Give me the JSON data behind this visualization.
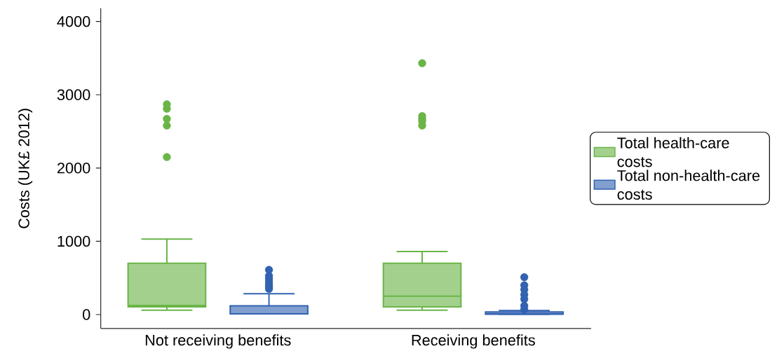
{
  "chart_data": {
    "type": "box",
    "ylabel": "Costs (UK£ 2012)",
    "categories": [
      "Not receiving benefits",
      "Receiving benefits"
    ],
    "series": [
      {
        "name": "Total health-care costs",
        "color": "#6ab547",
        "boxes": [
          {
            "low": 60,
            "q1": 105,
            "median": 125,
            "q3": 700,
            "high": 1030,
            "outliers": [
              2150,
              2580,
              2670,
              2810,
              2870
            ]
          },
          {
            "low": 60,
            "q1": 105,
            "median": 250,
            "q3": 700,
            "high": 860,
            "outliers": [
              2580,
              2640,
              2670,
              2710,
              3430
            ]
          }
        ]
      },
      {
        "name": "Total non-health-care costs",
        "color": "#3262b0",
        "boxes": [
          {
            "low": 10,
            "q1": 10,
            "median": 10,
            "q3": 120,
            "high": 285,
            "outliers": [
              350,
              380,
              410,
              450,
              490,
              530,
              610
            ]
          },
          {
            "low": 5,
            "q1": 5,
            "median": 10,
            "q3": 35,
            "high": 55,
            "outliers": [
              70,
              120,
              210,
              270,
              340,
              400,
              510
            ]
          }
        ]
      }
    ],
    "ylim": [
      -190,
      4180
    ],
    "yticks": [
      0,
      1000,
      2000,
      3000,
      4000
    ],
    "legend": "right",
    "marker": "circle"
  }
}
